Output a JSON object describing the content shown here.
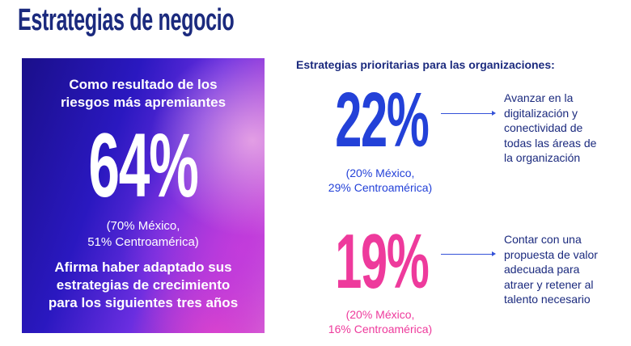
{
  "title": "Estrategias de negocio",
  "panel": {
    "top_text_1": "Como resultado de los",
    "top_text_2": "riesgos más apremiantes",
    "value": "64%",
    "sub_1": "(70% México,",
    "sub_2": "51% Centroamérica)",
    "bottom_1": "Afirma haber adaptado sus",
    "bottom_2": "estrategias de crecimiento",
    "bottom_3": "para los siguientes tres años"
  },
  "right": {
    "heading": "Estrategias prioritarias para las organizaciones:",
    "stats": [
      {
        "value": "22%",
        "sub_1": "(20% México,",
        "sub_2": "29% Centroamérica)",
        "color": "#2341d8",
        "desc": [
          "Avanzar en la",
          "digitalización y",
          "conectividad de",
          "todas las áreas de",
          "la organización"
        ]
      },
      {
        "value": "19%",
        "sub_1": "(20% México,",
        "sub_2": "16% Centroamérica)",
        "color": "#ee3a9c",
        "desc": [
          "Contar con una",
          "propuesta de valor",
          "adecuada para",
          "atraer y retener al",
          "talento necesario"
        ]
      }
    ]
  }
}
